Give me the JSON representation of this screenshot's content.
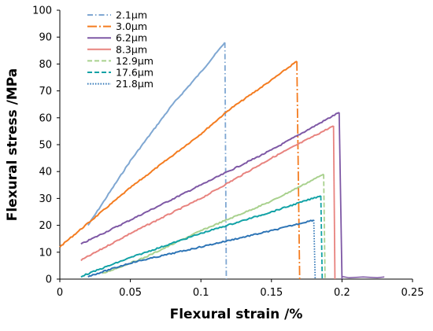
{
  "chart_data": {
    "type": "line",
    "title": "",
    "xlabel": "Flexural strain /%",
    "ylabel": "Flexural stress /MPa",
    "xlim": [
      0,
      0.25
    ],
    "ylim": [
      0,
      100
    ],
    "x_ticks": [
      "0",
      "0.05",
      "0.1",
      "0.15",
      "0.2",
      "0.25"
    ],
    "y_ticks": [
      "0",
      "10",
      "20",
      "30",
      "40",
      "50",
      "60",
      "70",
      "80",
      "90",
      "100"
    ],
    "grid": false,
    "legend_position": "top-left",
    "series": [
      {
        "name": "2.1µm",
        "color": "#7FA7D2",
        "dash": "dash-dot",
        "points": [
          [
            0.02,
            20
          ],
          [
            0.05,
            44
          ],
          [
            0.08,
            65
          ],
          [
            0.1,
            77
          ],
          [
            0.117,
            88
          ]
        ],
        "drop_x": 0.118
      },
      {
        "name": "3.0µm",
        "color": "#F47C20",
        "dash": "long-dash-dot",
        "points": [
          [
            0.0,
            12
          ],
          [
            0.05,
            34
          ],
          [
            0.1,
            54
          ],
          [
            0.12,
            63
          ],
          [
            0.15,
            74
          ],
          [
            0.168,
            81
          ]
        ],
        "drop_x": 0.17
      },
      {
        "name": "6.2µm",
        "color": "#7E58A5",
        "dash": "solid",
        "points": [
          [
            0.015,
            13
          ],
          [
            0.05,
            22
          ],
          [
            0.1,
            35
          ],
          [
            0.15,
            48
          ],
          [
            0.198,
            62
          ]
        ],
        "drop_x": 0.2,
        "tail": [
          [
            0.2,
            1
          ],
          [
            0.205,
            0.5
          ],
          [
            0.215,
            0.8
          ],
          [
            0.225,
            0.5
          ],
          [
            0.23,
            0.8
          ]
        ]
      },
      {
        "name": "8.3µm",
        "color": "#E8837F",
        "dash": "solid",
        "points": [
          [
            0.015,
            7
          ],
          [
            0.05,
            17
          ],
          [
            0.1,
            30
          ],
          [
            0.15,
            45
          ],
          [
            0.194,
            57
          ]
        ],
        "drop_x": 0.195
      },
      {
        "name": "12.9µm",
        "color": "#A9D18E",
        "dash": "dashed",
        "points": [
          [
            0.03,
            2
          ],
          [
            0.06,
            8
          ],
          [
            0.1,
            18
          ],
          [
            0.15,
            29
          ],
          [
            0.187,
            39
          ]
        ],
        "drop_x": 0.188
      },
      {
        "name": "17.6µm",
        "color": "#12A2A6",
        "dash": "dashed",
        "points": [
          [
            0.015,
            1
          ],
          [
            0.05,
            8
          ],
          [
            0.1,
            17
          ],
          [
            0.15,
            25
          ],
          [
            0.185,
            31
          ]
        ],
        "drop_x": 0.186
      },
      {
        "name": "21.8µm",
        "color": "#2E75B6",
        "dash": "dotted",
        "points": [
          [
            0.02,
            1
          ],
          [
            0.05,
            6
          ],
          [
            0.1,
            12
          ],
          [
            0.15,
            18
          ],
          [
            0.18,
            22
          ]
        ],
        "drop_x": 0.181
      }
    ]
  }
}
